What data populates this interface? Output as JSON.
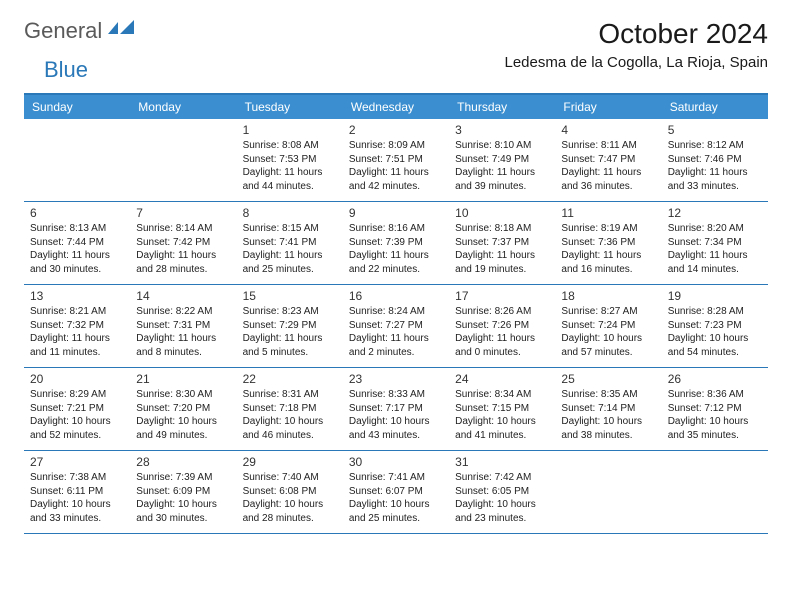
{
  "logo": {
    "part1": "General",
    "part2": "Blue"
  },
  "title": "October 2024",
  "location": "Ledesma de la Cogolla, La Rioja, Spain",
  "colors": {
    "header_bg": "#3b8fd0",
    "header_border": "#2a78b8",
    "text": "#222222",
    "daynum": "#333333",
    "logo_gray": "#5a5a5a",
    "logo_blue": "#2a78b8",
    "white": "#ffffff"
  },
  "day_names": [
    "Sunday",
    "Monday",
    "Tuesday",
    "Wednesday",
    "Thursday",
    "Friday",
    "Saturday"
  ],
  "weeks": [
    [
      null,
      null,
      {
        "n": "1",
        "sr": "Sunrise: 8:08 AM",
        "ss": "Sunset: 7:53 PM",
        "d1": "Daylight: 11 hours",
        "d2": "and 44 minutes."
      },
      {
        "n": "2",
        "sr": "Sunrise: 8:09 AM",
        "ss": "Sunset: 7:51 PM",
        "d1": "Daylight: 11 hours",
        "d2": "and 42 minutes."
      },
      {
        "n": "3",
        "sr": "Sunrise: 8:10 AM",
        "ss": "Sunset: 7:49 PM",
        "d1": "Daylight: 11 hours",
        "d2": "and 39 minutes."
      },
      {
        "n": "4",
        "sr": "Sunrise: 8:11 AM",
        "ss": "Sunset: 7:47 PM",
        "d1": "Daylight: 11 hours",
        "d2": "and 36 minutes."
      },
      {
        "n": "5",
        "sr": "Sunrise: 8:12 AM",
        "ss": "Sunset: 7:46 PM",
        "d1": "Daylight: 11 hours",
        "d2": "and 33 minutes."
      }
    ],
    [
      {
        "n": "6",
        "sr": "Sunrise: 8:13 AM",
        "ss": "Sunset: 7:44 PM",
        "d1": "Daylight: 11 hours",
        "d2": "and 30 minutes."
      },
      {
        "n": "7",
        "sr": "Sunrise: 8:14 AM",
        "ss": "Sunset: 7:42 PM",
        "d1": "Daylight: 11 hours",
        "d2": "and 28 minutes."
      },
      {
        "n": "8",
        "sr": "Sunrise: 8:15 AM",
        "ss": "Sunset: 7:41 PM",
        "d1": "Daylight: 11 hours",
        "d2": "and 25 minutes."
      },
      {
        "n": "9",
        "sr": "Sunrise: 8:16 AM",
        "ss": "Sunset: 7:39 PM",
        "d1": "Daylight: 11 hours",
        "d2": "and 22 minutes."
      },
      {
        "n": "10",
        "sr": "Sunrise: 8:18 AM",
        "ss": "Sunset: 7:37 PM",
        "d1": "Daylight: 11 hours",
        "d2": "and 19 minutes."
      },
      {
        "n": "11",
        "sr": "Sunrise: 8:19 AM",
        "ss": "Sunset: 7:36 PM",
        "d1": "Daylight: 11 hours",
        "d2": "and 16 minutes."
      },
      {
        "n": "12",
        "sr": "Sunrise: 8:20 AM",
        "ss": "Sunset: 7:34 PM",
        "d1": "Daylight: 11 hours",
        "d2": "and 14 minutes."
      }
    ],
    [
      {
        "n": "13",
        "sr": "Sunrise: 8:21 AM",
        "ss": "Sunset: 7:32 PM",
        "d1": "Daylight: 11 hours",
        "d2": "and 11 minutes."
      },
      {
        "n": "14",
        "sr": "Sunrise: 8:22 AM",
        "ss": "Sunset: 7:31 PM",
        "d1": "Daylight: 11 hours",
        "d2": "and 8 minutes."
      },
      {
        "n": "15",
        "sr": "Sunrise: 8:23 AM",
        "ss": "Sunset: 7:29 PM",
        "d1": "Daylight: 11 hours",
        "d2": "and 5 minutes."
      },
      {
        "n": "16",
        "sr": "Sunrise: 8:24 AM",
        "ss": "Sunset: 7:27 PM",
        "d1": "Daylight: 11 hours",
        "d2": "and 2 minutes."
      },
      {
        "n": "17",
        "sr": "Sunrise: 8:26 AM",
        "ss": "Sunset: 7:26 PM",
        "d1": "Daylight: 11 hours",
        "d2": "and 0 minutes."
      },
      {
        "n": "18",
        "sr": "Sunrise: 8:27 AM",
        "ss": "Sunset: 7:24 PM",
        "d1": "Daylight: 10 hours",
        "d2": "and 57 minutes."
      },
      {
        "n": "19",
        "sr": "Sunrise: 8:28 AM",
        "ss": "Sunset: 7:23 PM",
        "d1": "Daylight: 10 hours",
        "d2": "and 54 minutes."
      }
    ],
    [
      {
        "n": "20",
        "sr": "Sunrise: 8:29 AM",
        "ss": "Sunset: 7:21 PM",
        "d1": "Daylight: 10 hours",
        "d2": "and 52 minutes."
      },
      {
        "n": "21",
        "sr": "Sunrise: 8:30 AM",
        "ss": "Sunset: 7:20 PM",
        "d1": "Daylight: 10 hours",
        "d2": "and 49 minutes."
      },
      {
        "n": "22",
        "sr": "Sunrise: 8:31 AM",
        "ss": "Sunset: 7:18 PM",
        "d1": "Daylight: 10 hours",
        "d2": "and 46 minutes."
      },
      {
        "n": "23",
        "sr": "Sunrise: 8:33 AM",
        "ss": "Sunset: 7:17 PM",
        "d1": "Daylight: 10 hours",
        "d2": "and 43 minutes."
      },
      {
        "n": "24",
        "sr": "Sunrise: 8:34 AM",
        "ss": "Sunset: 7:15 PM",
        "d1": "Daylight: 10 hours",
        "d2": "and 41 minutes."
      },
      {
        "n": "25",
        "sr": "Sunrise: 8:35 AM",
        "ss": "Sunset: 7:14 PM",
        "d1": "Daylight: 10 hours",
        "d2": "and 38 minutes."
      },
      {
        "n": "26",
        "sr": "Sunrise: 8:36 AM",
        "ss": "Sunset: 7:12 PM",
        "d1": "Daylight: 10 hours",
        "d2": "and 35 minutes."
      }
    ],
    [
      {
        "n": "27",
        "sr": "Sunrise: 7:38 AM",
        "ss": "Sunset: 6:11 PM",
        "d1": "Daylight: 10 hours",
        "d2": "and 33 minutes."
      },
      {
        "n": "28",
        "sr": "Sunrise: 7:39 AM",
        "ss": "Sunset: 6:09 PM",
        "d1": "Daylight: 10 hours",
        "d2": "and 30 minutes."
      },
      {
        "n": "29",
        "sr": "Sunrise: 7:40 AM",
        "ss": "Sunset: 6:08 PM",
        "d1": "Daylight: 10 hours",
        "d2": "and 28 minutes."
      },
      {
        "n": "30",
        "sr": "Sunrise: 7:41 AM",
        "ss": "Sunset: 6:07 PM",
        "d1": "Daylight: 10 hours",
        "d2": "and 25 minutes."
      },
      {
        "n": "31",
        "sr": "Sunrise: 7:42 AM",
        "ss": "Sunset: 6:05 PM",
        "d1": "Daylight: 10 hours",
        "d2": "and 23 minutes."
      },
      null,
      null
    ]
  ]
}
